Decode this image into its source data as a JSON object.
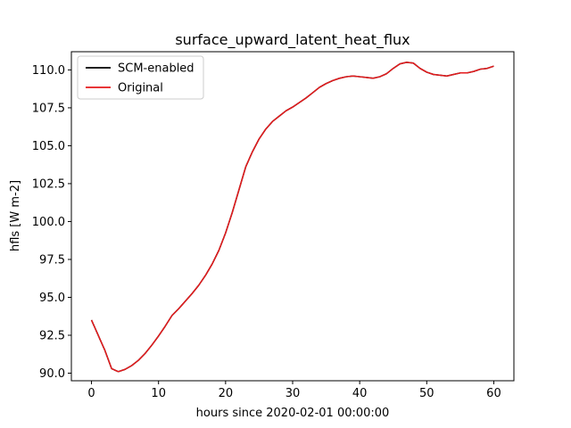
{
  "chart_data": {
    "type": "line",
    "title": "surface_upward_latent_heat_flux",
    "xlabel": "hours since 2020-02-01 00:00:00",
    "ylabel": "hfls [W m-2]",
    "xlim": [
      -3,
      63
    ],
    "ylim": [
      89.5,
      111.2
    ],
    "xticks": [
      0,
      10,
      20,
      30,
      40,
      50,
      60
    ],
    "xtick_labels": [
      "0",
      "10",
      "20",
      "30",
      "40",
      "50",
      "60"
    ],
    "yticks": [
      90.0,
      92.5,
      95.0,
      97.5,
      100.0,
      102.5,
      105.0,
      107.5,
      110.0
    ],
    "ytick_labels": [
      "90.0",
      "92.5",
      "95.0",
      "97.5",
      "100.0",
      "102.5",
      "105.0",
      "107.5",
      "110.0"
    ],
    "grid": false,
    "legend_position": "top-left",
    "x": [
      0,
      1,
      2,
      3,
      4,
      5,
      6,
      7,
      8,
      9,
      10,
      11,
      12,
      13,
      14,
      15,
      16,
      17,
      18,
      19,
      20,
      21,
      22,
      23,
      24,
      25,
      26,
      27,
      28,
      29,
      30,
      31,
      32,
      33,
      34,
      35,
      36,
      37,
      38,
      39,
      40,
      41,
      42,
      43,
      44,
      45,
      46,
      47,
      48,
      49,
      50,
      51,
      52,
      53,
      54,
      55,
      56,
      57,
      58,
      59,
      60
    ],
    "series": [
      {
        "name": "SCM-enabled",
        "color": "#000000",
        "values": [
          93.5,
          92.5,
          91.5,
          90.3,
          90.1,
          90.25,
          90.5,
          90.85,
          91.3,
          91.85,
          92.45,
          93.1,
          93.8,
          94.25,
          94.75,
          95.25,
          95.8,
          96.45,
          97.2,
          98.1,
          99.25,
          100.6,
          102.1,
          103.6,
          104.6,
          105.45,
          106.1,
          106.6,
          106.95,
          107.3,
          107.55,
          107.85,
          108.15,
          108.5,
          108.85,
          109.1,
          109.3,
          109.45,
          109.55,
          109.6,
          109.55,
          109.5,
          109.45,
          109.55,
          109.75,
          110.1,
          110.4,
          110.5,
          110.45,
          110.1,
          109.85,
          109.7,
          109.65,
          109.6,
          109.7,
          109.8,
          109.8,
          109.9,
          110.05,
          110.1,
          110.25
        ]
      },
      {
        "name": "Original",
        "color": "#e41a1c",
        "values": [
          93.5,
          92.5,
          91.5,
          90.3,
          90.1,
          90.25,
          90.5,
          90.85,
          91.3,
          91.85,
          92.45,
          93.1,
          93.8,
          94.25,
          94.75,
          95.25,
          95.8,
          96.45,
          97.2,
          98.1,
          99.25,
          100.6,
          102.1,
          103.6,
          104.6,
          105.45,
          106.1,
          106.6,
          106.95,
          107.3,
          107.55,
          107.85,
          108.15,
          108.5,
          108.85,
          109.1,
          109.3,
          109.45,
          109.55,
          109.6,
          109.55,
          109.5,
          109.45,
          109.55,
          109.75,
          110.1,
          110.4,
          110.5,
          110.45,
          110.1,
          109.85,
          109.7,
          109.65,
          109.6,
          109.7,
          109.8,
          109.8,
          109.9,
          110.05,
          110.1,
          110.25
        ]
      }
    ]
  }
}
